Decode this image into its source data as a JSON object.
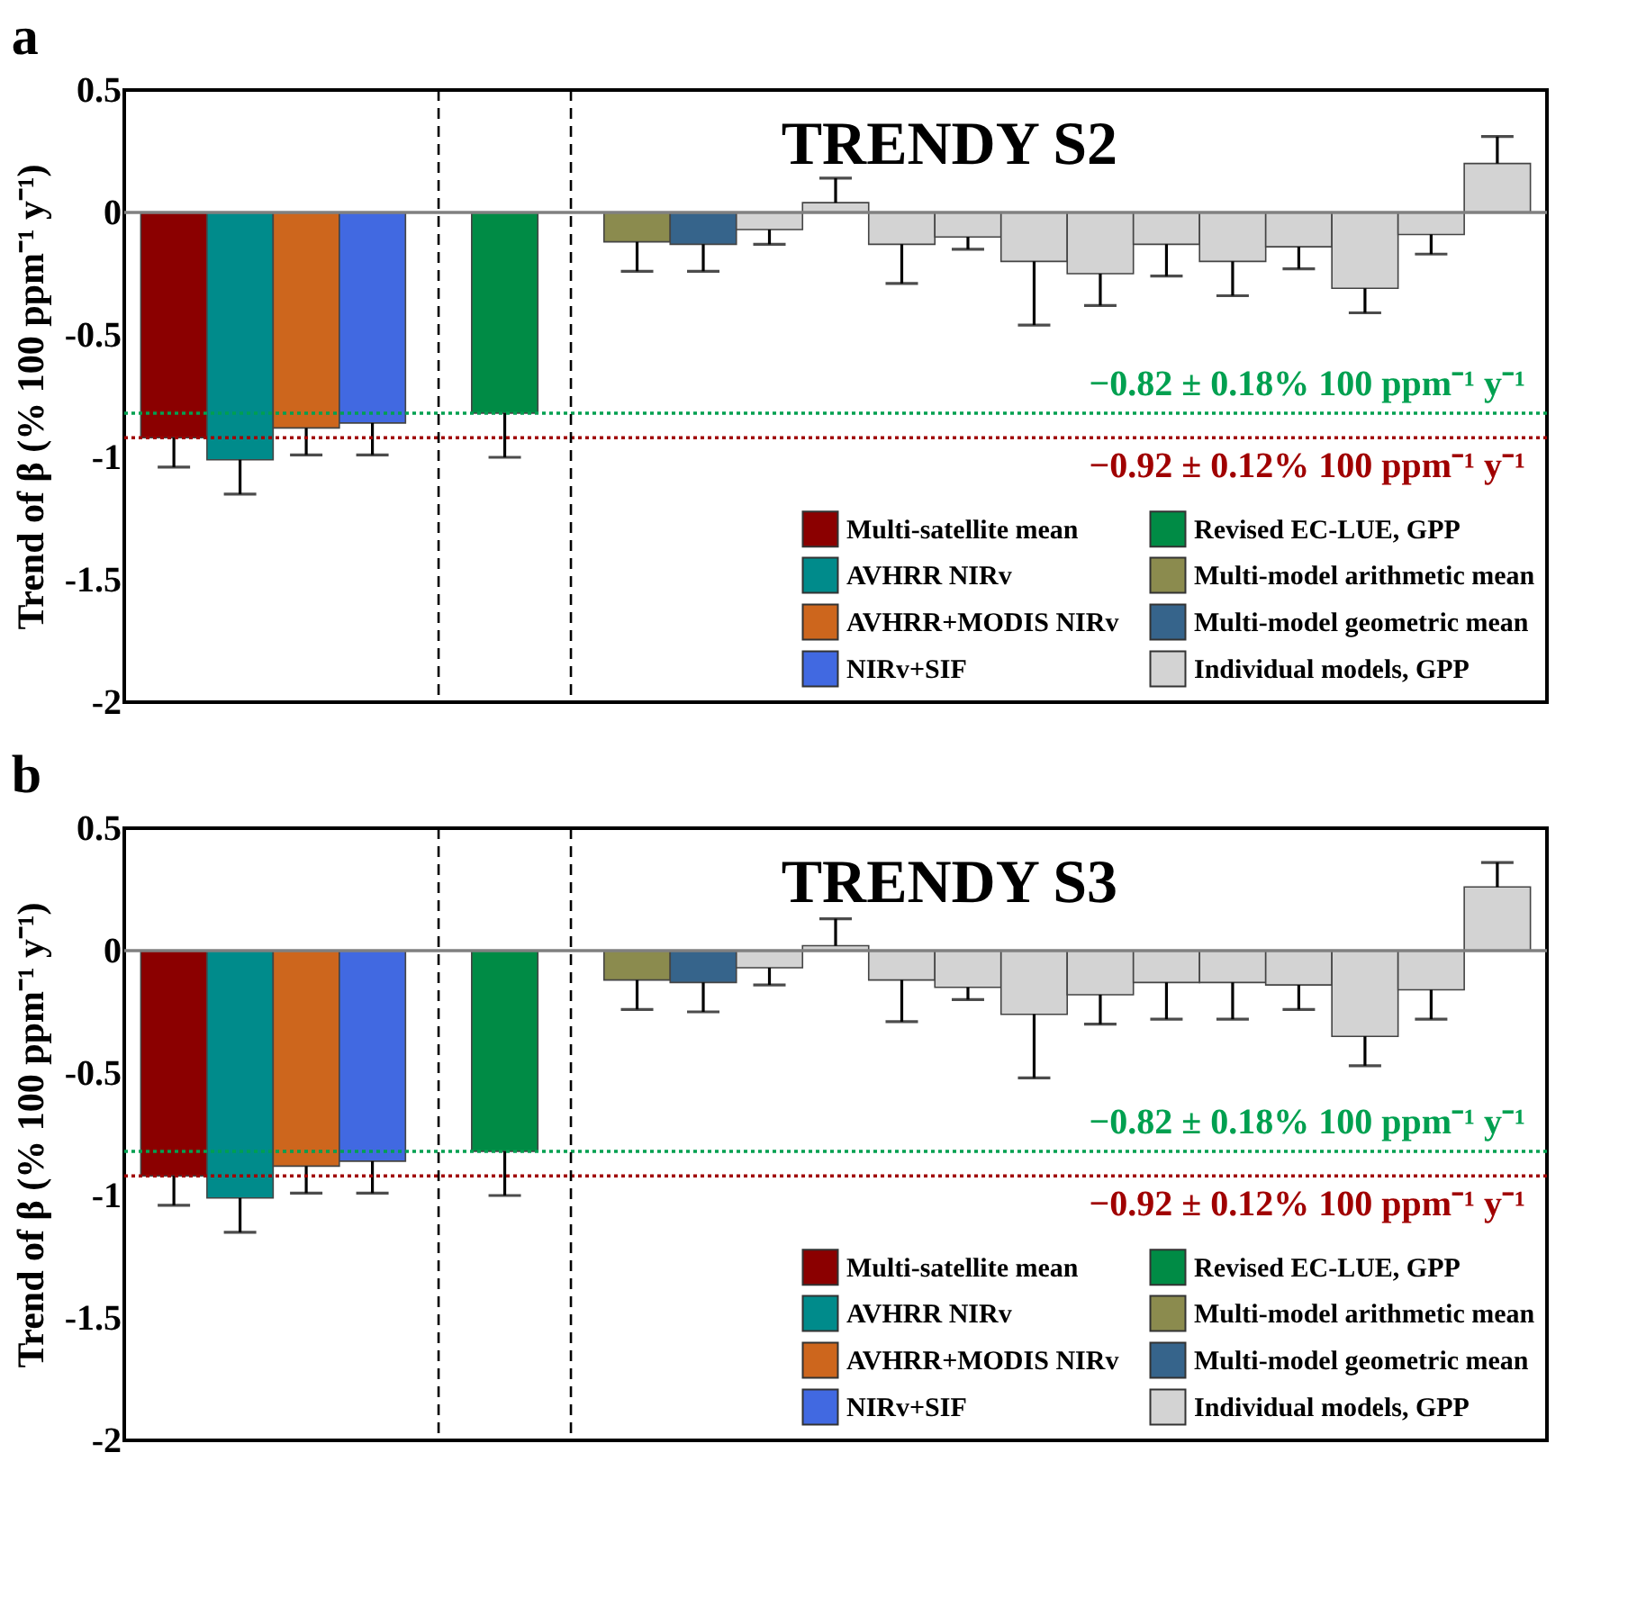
{
  "chart_data": [
    {
      "type": "bar",
      "title": "TRENDY S2",
      "annotations": [
        "a"
      ],
      "ylabel": "Trend of β (% 100 ppm⁻¹ y⁻¹)",
      "categories": [
        null,
        null,
        null,
        null,
        null,
        null,
        null,
        null,
        null,
        null,
        null,
        null,
        null,
        null,
        null,
        null,
        null,
        null,
        null,
        null,
        null
      ],
      "series": [
        {
          "name": "Multi-satellite mean",
          "color": "#8b0000",
          "values": [
            -0.92,
            null,
            null,
            null,
            null,
            null,
            null,
            null,
            null,
            null,
            null,
            null,
            null,
            null,
            null,
            null,
            null,
            null,
            null,
            null,
            null
          ],
          "errors": [
            0.12,
            null,
            null,
            null,
            null,
            null,
            null,
            null,
            null,
            null,
            null,
            null,
            null,
            null,
            null,
            null,
            null,
            null,
            null,
            null,
            null
          ]
        },
        {
          "name": "AVHRR NIRv",
          "color": "#008b8b",
          "values": [
            null,
            -1.01,
            null,
            null,
            null,
            null,
            null,
            null,
            null,
            null,
            null,
            null,
            null,
            null,
            null,
            null,
            null,
            null,
            null,
            null,
            null
          ],
          "errors": [
            null,
            0.14,
            null,
            null,
            null,
            null,
            null,
            null,
            null,
            null,
            null,
            null,
            null,
            null,
            null,
            null,
            null,
            null,
            null,
            null,
            null
          ]
        },
        {
          "name": "AVHRR+MODIS NIRv",
          "color": "#cd661d",
          "values": [
            null,
            null,
            -0.88,
            null,
            null,
            null,
            null,
            null,
            null,
            null,
            null,
            null,
            null,
            null,
            null,
            null,
            null,
            null,
            null,
            null,
            null
          ],
          "errors": [
            null,
            null,
            0.11,
            null,
            null,
            null,
            null,
            null,
            null,
            null,
            null,
            null,
            null,
            null,
            null,
            null,
            null,
            null,
            null,
            null,
            null
          ]
        },
        {
          "name": "NIRv+SIF",
          "color": "#4169e1",
          "values": [
            null,
            null,
            null,
            -0.86,
            null,
            null,
            null,
            null,
            null,
            null,
            null,
            null,
            null,
            null,
            null,
            null,
            null,
            null,
            null,
            null,
            null
          ],
          "errors": [
            null,
            null,
            null,
            0.13,
            null,
            null,
            null,
            null,
            null,
            null,
            null,
            null,
            null,
            null,
            null,
            null,
            null,
            null,
            null,
            null,
            null
          ]
        },
        {
          "name": "Revised EC-LUE, GPP",
          "color": "#008b45",
          "values": [
            null,
            null,
            null,
            null,
            null,
            -0.82,
            null,
            null,
            null,
            null,
            null,
            null,
            null,
            null,
            null,
            null,
            null,
            null,
            null,
            null,
            null
          ],
          "errors": [
            null,
            null,
            null,
            null,
            null,
            0.18,
            null,
            null,
            null,
            null,
            null,
            null,
            null,
            null,
            null,
            null,
            null,
            null,
            null,
            null,
            null
          ]
        },
        {
          "name": "Multi-model arithmetic mean",
          "color": "#8b8b4e",
          "values": [
            null,
            null,
            null,
            null,
            null,
            null,
            null,
            -0.12,
            null,
            null,
            null,
            null,
            null,
            null,
            null,
            null,
            null,
            null,
            null,
            null,
            null
          ],
          "errors": [
            null,
            null,
            null,
            null,
            null,
            null,
            null,
            0.12,
            null,
            null,
            null,
            null,
            null,
            null,
            null,
            null,
            null,
            null,
            null,
            null,
            null
          ]
        },
        {
          "name": "Multi-model geometric mean",
          "color": "#36648b",
          "values": [
            null,
            null,
            null,
            null,
            null,
            null,
            null,
            null,
            -0.13,
            null,
            null,
            null,
            null,
            null,
            null,
            null,
            null,
            null,
            null,
            null,
            null
          ],
          "errors": [
            null,
            null,
            null,
            null,
            null,
            null,
            null,
            null,
            0.11,
            null,
            null,
            null,
            null,
            null,
            null,
            null,
            null,
            null,
            null,
            null,
            null
          ]
        },
        {
          "name": "Individual models, GPP",
          "color": "#d3d3d3",
          "values": [
            null,
            null,
            null,
            null,
            null,
            null,
            null,
            null,
            null,
            -0.07,
            0.04,
            -0.13,
            -0.1,
            -0.2,
            -0.25,
            -0.13,
            -0.2,
            -0.14,
            -0.31,
            -0.09,
            0.2
          ],
          "errors": [
            null,
            null,
            null,
            null,
            null,
            null,
            null,
            null,
            null,
            0.06,
            0.1,
            0.16,
            0.05,
            0.26,
            0.13,
            0.13,
            0.14,
            0.09,
            0.1,
            0.08,
            0.11
          ]
        }
      ],
      "ylim": [
        -2,
        0.5
      ],
      "yticks": [
        -2,
        -1.5,
        -1,
        -0.5,
        0,
        0.5
      ],
      "tick_labels": "y",
      "legend": "bottom right",
      "ref_lines": [
        {
          "axis": "y",
          "value": 0,
          "color": "#808080",
          "line_style": "solid"
        },
        {
          "axis": "y",
          "value": -0.82,
          "label": "−0.82 ± 0.18% 100 ppm⁻¹ y⁻¹",
          "color": "#00a050",
          "line_style": "dotted"
        },
        {
          "axis": "y",
          "value": -0.92,
          "label": "−0.92 ± 0.12% 100 ppm⁻¹ y⁻¹",
          "color": "#a00000",
          "line_style": "dotted"
        }
      ]
    },
    {
      "type": "bar",
      "title": "TRENDY S3",
      "annotations": [
        "b"
      ],
      "ylabel": "Trend of β (% 100 ppm⁻¹ y⁻¹)",
      "categories": [
        null,
        null,
        null,
        null,
        null,
        null,
        null,
        null,
        null,
        null,
        null,
        null,
        null,
        null,
        null,
        null,
        null,
        null,
        null,
        null,
        null
      ],
      "series": [
        {
          "name": "Multi-satellite mean",
          "color": "#8b0000",
          "values": [
            -0.92,
            null,
            null,
            null,
            null,
            null,
            null,
            null,
            null,
            null,
            null,
            null,
            null,
            null,
            null,
            null,
            null,
            null,
            null,
            null,
            null
          ],
          "errors": [
            0.12,
            null,
            null,
            null,
            null,
            null,
            null,
            null,
            null,
            null,
            null,
            null,
            null,
            null,
            null,
            null,
            null,
            null,
            null,
            null,
            null
          ]
        },
        {
          "name": "AVHRR NIRv",
          "color": "#008b8b",
          "values": [
            null,
            -1.01,
            null,
            null,
            null,
            null,
            null,
            null,
            null,
            null,
            null,
            null,
            null,
            null,
            null,
            null,
            null,
            null,
            null,
            null,
            null
          ],
          "errors": [
            null,
            0.14,
            null,
            null,
            null,
            null,
            null,
            null,
            null,
            null,
            null,
            null,
            null,
            null,
            null,
            null,
            null,
            null,
            null,
            null,
            null
          ]
        },
        {
          "name": "AVHRR+MODIS NIRv",
          "color": "#cd661d",
          "values": [
            null,
            null,
            -0.88,
            null,
            null,
            null,
            null,
            null,
            null,
            null,
            null,
            null,
            null,
            null,
            null,
            null,
            null,
            null,
            null,
            null,
            null
          ],
          "errors": [
            null,
            null,
            0.11,
            null,
            null,
            null,
            null,
            null,
            null,
            null,
            null,
            null,
            null,
            null,
            null,
            null,
            null,
            null,
            null,
            null,
            null
          ]
        },
        {
          "name": "NIRv+SIF",
          "color": "#4169e1",
          "values": [
            null,
            null,
            null,
            -0.86,
            null,
            null,
            null,
            null,
            null,
            null,
            null,
            null,
            null,
            null,
            null,
            null,
            null,
            null,
            null,
            null,
            null
          ],
          "errors": [
            null,
            null,
            null,
            0.13,
            null,
            null,
            null,
            null,
            null,
            null,
            null,
            null,
            null,
            null,
            null,
            null,
            null,
            null,
            null,
            null,
            null
          ]
        },
        {
          "name": "Revised EC-LUE, GPP",
          "color": "#008b45",
          "values": [
            null,
            null,
            null,
            null,
            null,
            -0.82,
            null,
            null,
            null,
            null,
            null,
            null,
            null,
            null,
            null,
            null,
            null,
            null,
            null,
            null,
            null
          ],
          "errors": [
            null,
            null,
            null,
            null,
            null,
            0.18,
            null,
            null,
            null,
            null,
            null,
            null,
            null,
            null,
            null,
            null,
            null,
            null,
            null,
            null,
            null
          ]
        },
        {
          "name": "Multi-model arithmetic mean",
          "color": "#8b8b4e",
          "values": [
            null,
            null,
            null,
            null,
            null,
            null,
            null,
            -0.12,
            null,
            null,
            null,
            null,
            null,
            null,
            null,
            null,
            null,
            null,
            null,
            null,
            null
          ],
          "errors": [
            null,
            null,
            null,
            null,
            null,
            null,
            null,
            0.12,
            null,
            null,
            null,
            null,
            null,
            null,
            null,
            null,
            null,
            null,
            null,
            null,
            null
          ]
        },
        {
          "name": "Multi-model geometric mean",
          "color": "#36648b",
          "values": [
            null,
            null,
            null,
            null,
            null,
            null,
            null,
            null,
            -0.13,
            null,
            null,
            null,
            null,
            null,
            null,
            null,
            null,
            null,
            null,
            null,
            null
          ],
          "errors": [
            null,
            null,
            null,
            null,
            null,
            null,
            null,
            null,
            0.12,
            null,
            null,
            null,
            null,
            null,
            null,
            null,
            null,
            null,
            null,
            null,
            null
          ]
        },
        {
          "name": "Individual models, GPP",
          "color": "#d3d3d3",
          "values": [
            null,
            null,
            null,
            null,
            null,
            null,
            null,
            null,
            null,
            -0.07,
            0.02,
            -0.12,
            -0.15,
            -0.26,
            -0.18,
            -0.13,
            -0.13,
            -0.14,
            -0.35,
            -0.16,
            0.26
          ],
          "errors": [
            null,
            null,
            null,
            null,
            null,
            null,
            null,
            null,
            null,
            0.07,
            0.11,
            0.17,
            0.05,
            0.26,
            0.12,
            0.15,
            0.15,
            0.1,
            0.12,
            0.12,
            0.1
          ]
        }
      ],
      "ylim": [
        -2,
        0.5
      ],
      "yticks": [
        -2,
        -1.5,
        -1,
        -0.5,
        0,
        0.5
      ],
      "tick_labels": "y",
      "legend": "bottom right",
      "ref_lines": [
        {
          "axis": "y",
          "value": 0,
          "color": "#808080",
          "line_style": "solid"
        },
        {
          "axis": "y",
          "value": -0.82,
          "label": "−0.82 ± 0.18% 100 ppm⁻¹ y⁻¹",
          "color": "#00a050",
          "line_style": "dotted"
        },
        {
          "axis": "y",
          "value": -0.92,
          "label": "−0.92 ± 0.12% 100 ppm⁻¹ y⁻¹",
          "color": "#a00000",
          "line_style": "dotted"
        }
      ]
    }
  ]
}
